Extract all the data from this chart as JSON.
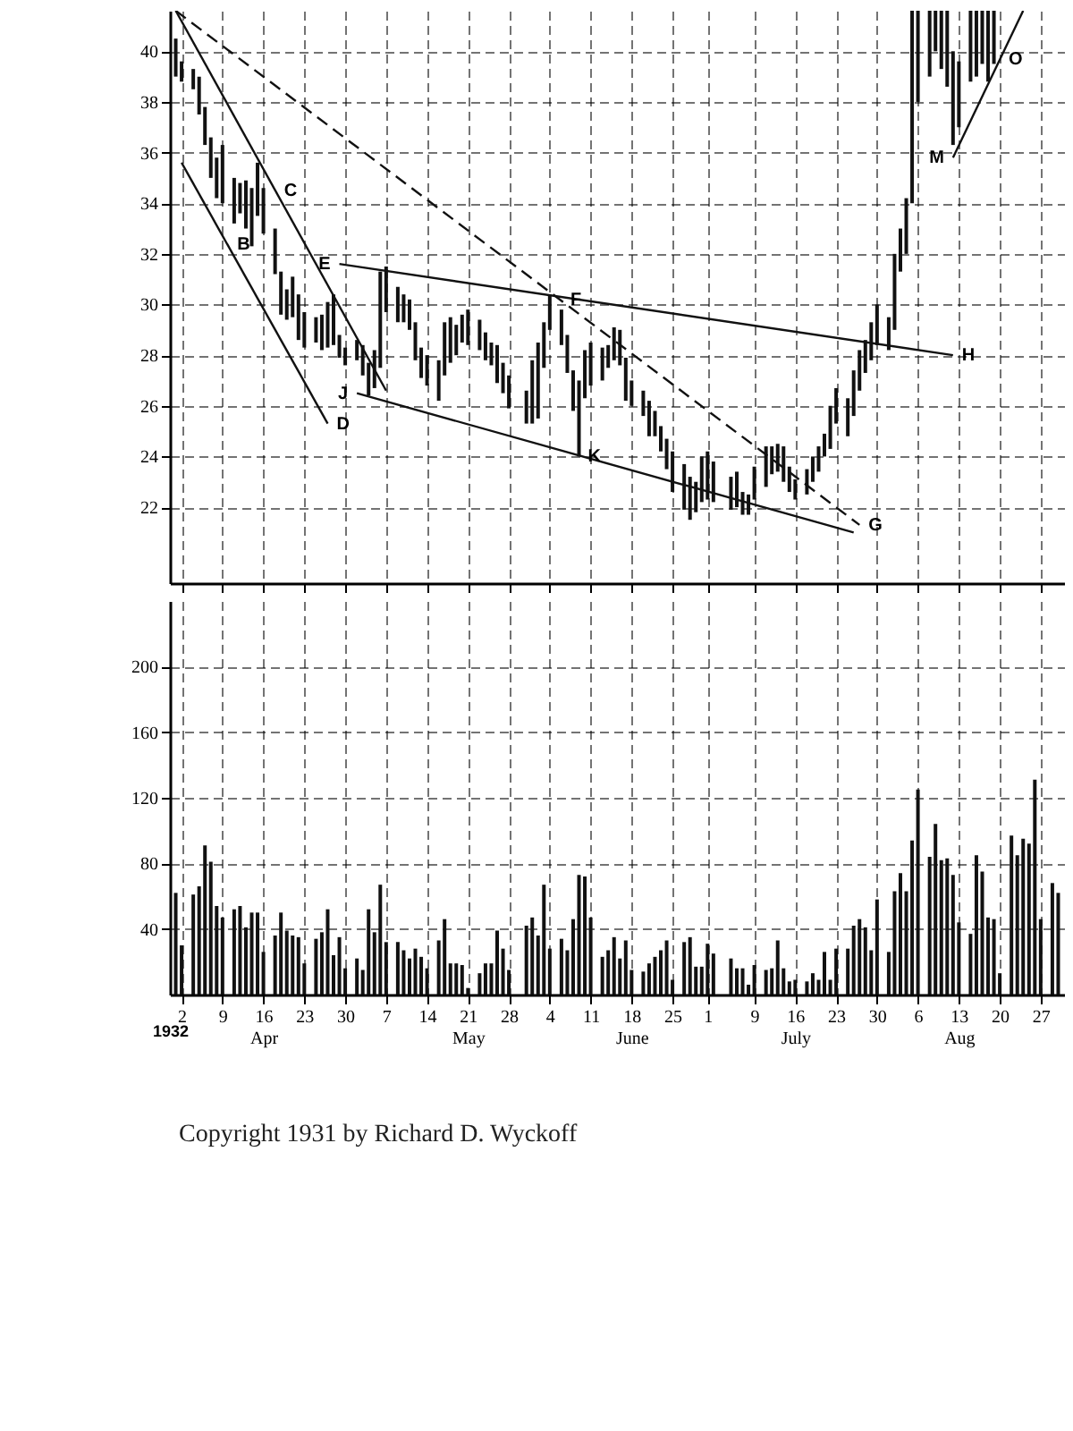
{
  "chart_data": [
    {
      "type": "bar",
      "tick_labels": "y",
      "grid": true,
      "xlim": [
        "1932-03-31",
        "1932-08-31"
      ],
      "xticks": [
        {
          "value": "1932-04-02",
          "label": null
        },
        {
          "value": "1932-04-09",
          "label": null
        },
        {
          "value": "1932-04-16",
          "label": null
        },
        {
          "value": "1932-04-23",
          "label": null
        },
        {
          "value": "1932-04-30",
          "label": null
        },
        {
          "value": "1932-05-07",
          "label": null
        },
        {
          "value": "1932-05-14",
          "label": null
        },
        {
          "value": "1932-05-21",
          "label": null
        },
        {
          "value": "1932-05-28",
          "label": null
        },
        {
          "value": "1932-06-04",
          "label": null
        },
        {
          "value": "1932-06-11",
          "label": null
        },
        {
          "value": "1932-06-18",
          "label": null
        },
        {
          "value": "1932-06-25",
          "label": null
        },
        {
          "value": "1932-07-01",
          "label": null
        },
        {
          "value": "1932-07-09",
          "label": null
        },
        {
          "value": "1932-07-16",
          "label": null
        },
        {
          "value": "1932-07-23",
          "label": null
        },
        {
          "value": "1932-07-30",
          "label": null
        },
        {
          "value": "1932-08-06",
          "label": null
        },
        {
          "value": "1932-08-13",
          "label": null
        },
        {
          "value": "1932-08-20",
          "label": null
        },
        {
          "value": "1932-08-27",
          "label": null
        }
      ],
      "ylim": [
        19,
        41.6
      ],
      "yticks": [
        22,
        24,
        26,
        28,
        30,
        32,
        34,
        36,
        38,
        40
      ],
      "series": [
        {
          "color": "#111111",
          "x": [
            "1932-04-01",
            "1932-04-02",
            "1932-04-04",
            "1932-04-05",
            "1932-04-06",
            "1932-04-07",
            "1932-04-08",
            "1932-04-09",
            "1932-04-11",
            "1932-04-12",
            "1932-04-13",
            "1932-04-14",
            "1932-04-15",
            "1932-04-16",
            "1932-04-18",
            "1932-04-19",
            "1932-04-20",
            "1932-04-21",
            "1932-04-22",
            "1932-04-23",
            "1932-04-25",
            "1932-04-26",
            "1932-04-27",
            "1932-04-28",
            "1932-04-29",
            "1932-04-30",
            "1932-05-02",
            "1932-05-03",
            "1932-05-04",
            "1932-05-05",
            "1932-05-06",
            "1932-05-07",
            "1932-05-09",
            "1932-05-10",
            "1932-05-11",
            "1932-05-12",
            "1932-05-13",
            "1932-05-14",
            "1932-05-16",
            "1932-05-17",
            "1932-05-18",
            "1932-05-19",
            "1932-05-20",
            "1932-05-21",
            "1932-05-23",
            "1932-05-24",
            "1932-05-25",
            "1932-05-26",
            "1932-05-27",
            "1932-05-28",
            "1932-05-31",
            "1932-06-01",
            "1932-06-02",
            "1932-06-03",
            "1932-06-04",
            "1932-06-06",
            "1932-06-07",
            "1932-06-08",
            "1932-06-09",
            "1932-06-10",
            "1932-06-11",
            "1932-06-13",
            "1932-06-14",
            "1932-06-15",
            "1932-06-16",
            "1932-06-17",
            "1932-06-18",
            "1932-06-20",
            "1932-06-21",
            "1932-06-22",
            "1932-06-23",
            "1932-06-24",
            "1932-06-25",
            "1932-06-27",
            "1932-06-28",
            "1932-06-29",
            "1932-06-30",
            "1932-07-01",
            "1932-07-02",
            "1932-07-05",
            "1932-07-06",
            "1932-07-07",
            "1932-07-08",
            "1932-07-09",
            "1932-07-11",
            "1932-07-12",
            "1932-07-13",
            "1932-07-14",
            "1932-07-15",
            "1932-07-16",
            "1932-07-18",
            "1932-07-19",
            "1932-07-20",
            "1932-07-21",
            "1932-07-22",
            "1932-07-23",
            "1932-07-25",
            "1932-07-26",
            "1932-07-27",
            "1932-07-28",
            "1932-07-29",
            "1932-07-30",
            "1932-08-01",
            "1932-08-02",
            "1932-08-03",
            "1932-08-04",
            "1932-08-05",
            "1932-08-06",
            "1932-08-08",
            "1932-08-09",
            "1932-08-10",
            "1932-08-11",
            "1932-08-12",
            "1932-08-13",
            "1932-08-15",
            "1932-08-16",
            "1932-08-17",
            "1932-08-18",
            "1932-08-19"
          ],
          "base": [
            39.0,
            38.8,
            38.5,
            37.5,
            36.3,
            35.0,
            34.2,
            34.0,
            33.2,
            33.6,
            33.0,
            32.3,
            33.5,
            32.8,
            31.2,
            29.6,
            29.4,
            29.5,
            28.6,
            28.3,
            28.5,
            28.2,
            28.3,
            28.4,
            27.9,
            27.6,
            27.8,
            27.2,
            26.4,
            26.7,
            27.5,
            29.7,
            29.3,
            29.3,
            29.0,
            27.8,
            27.1,
            26.8,
            26.2,
            27.2,
            27.7,
            28.0,
            28.5,
            28.4,
            28.2,
            27.8,
            27.6,
            26.9,
            26.5,
            25.9,
            25.3,
            25.3,
            25.5,
            27.5,
            29.0,
            28.4,
            27.3,
            25.8,
            24.0,
            26.3,
            26.8,
            27.0,
            27.5,
            27.8,
            27.6,
            26.2,
            26.0,
            25.6,
            24.8,
            24.8,
            24.2,
            23.5,
            22.6,
            21.9,
            21.5,
            21.8,
            22.2,
            22.3,
            22.2,
            21.9,
            22.0,
            21.7,
            21.7,
            22.3,
            22.8,
            23.3,
            23.4,
            23.0,
            22.6,
            22.3,
            22.5,
            23.0,
            23.4,
            24.0,
            24.3,
            25.3,
            24.8,
            25.6,
            26.6,
            27.3,
            27.8,
            28.4,
            28.2,
            29.0,
            31.3,
            32.0,
            34.0,
            38.0,
            39.0,
            40.0,
            39.3,
            38.6,
            36.3,
            37.0,
            38.8,
            39.0,
            39.5,
            38.8,
            39.5
          ],
          "values": [
            1.5,
            0.8,
            0.8,
            1.5,
            1.5,
            1.6,
            1.6,
            2.3,
            1.8,
            1.2,
            1.9,
            2.3,
            2.1,
            1.8,
            1.8,
            1.7,
            1.2,
            1.6,
            1.8,
            1.4,
            1.0,
            1.4,
            1.8,
            2.0,
            0.9,
            0.7,
            0.8,
            1.2,
            1.3,
            1.5,
            3.8,
            1.8,
            1.4,
            1.1,
            1.2,
            1.5,
            1.2,
            1.2,
            1.6,
            2.1,
            1.8,
            1.2,
            1.1,
            1.4,
            1.2,
            1.1,
            0.9,
            1.5,
            1.2,
            1.3,
            1.3,
            2.5,
            3.0,
            1.8,
            1.4,
            1.4,
            1.5,
            1.6,
            3.0,
            1.9,
            1.7,
            1.3,
            0.9,
            1.3,
            1.4,
            1.7,
            1.0,
            1.0,
            1.4,
            1.0,
            1.0,
            1.2,
            1.6,
            1.8,
            1.7,
            1.2,
            1.8,
            1.9,
            1.6,
            1.3,
            1.4,
            0.9,
            0.8,
            1.3,
            1.6,
            1.1,
            1.1,
            1.4,
            1.0,
            0.8,
            1.0,
            1.0,
            1.0,
            0.9,
            1.7,
            1.4,
            1.5,
            1.8,
            1.6,
            1.3,
            1.5,
            1.6,
            1.3,
            3.0,
            1.7,
            2.2,
            7.6,
            3.6,
            2.6,
            1.6,
            2.3,
            3.0,
            3.7,
            2.6,
            2.8,
            2.6,
            2.1,
            2.8,
            2.1
          ]
        },
        {
          "type": "line",
          "color": "#111111",
          "line_style": "dashed",
          "x": [
            "1932-04-01",
            "1932-07-27"
          ],
          "values": [
            41.6,
            21.3
          ]
        },
        {
          "type": "line",
          "color": "#111111",
          "x": [
            "1932-04-01",
            "1932-05-07"
          ],
          "values": [
            41.6,
            26.6
          ]
        },
        {
          "type": "line",
          "color": "#111111",
          "x": [
            "1932-04-02",
            "1932-04-27"
          ],
          "values": [
            35.6,
            25.3
          ]
        },
        {
          "type": "line",
          "color": "#111111",
          "x": [
            "1932-04-29",
            "1932-08-12"
          ],
          "values": [
            31.6,
            28.0
          ]
        },
        {
          "type": "line",
          "color": "#111111",
          "x": [
            "1932-05-02",
            "1932-07-26"
          ],
          "values": [
            26.5,
            21.0
          ]
        },
        {
          "type": "line",
          "color": "#111111",
          "x": [
            "1932-08-12",
            "1932-08-24"
          ],
          "values": [
            35.8,
            41.6
          ]
        }
      ],
      "annotations": [
        {
          "text": "B",
          "x": "1932-04-10",
          "y": 32.4
        },
        {
          "text": "C",
          "x": "1932-04-18",
          "y": 34.5
        },
        {
          "text": "D",
          "x": "1932-04-27",
          "y": 25.3
        },
        {
          "text": "E",
          "x": "1932-04-29",
          "y": 31.6
        },
        {
          "text": "J",
          "x": "1932-05-02",
          "y": 26.5
        },
        {
          "text": "F",
          "x": "1932-06-06",
          "y": 30.2
        },
        {
          "text": "K",
          "x": "1932-06-09",
          "y": 24.0
        },
        {
          "text": "G",
          "x": "1932-07-27",
          "y": 21.3
        },
        {
          "text": "H",
          "x": "1932-08-12",
          "y": 28.0
        },
        {
          "text": "M",
          "x": "1932-08-12",
          "y": 35.8
        },
        {
          "text": "O",
          "x": "1932-08-20",
          "y": 39.7
        }
      ]
    },
    {
      "type": "bar",
      "grid": true,
      "xlabel": "1932",
      "color": "#111111",
      "x": [
        "1932-04-01",
        "1932-04-02",
        "1932-04-04",
        "1932-04-05",
        "1932-04-06",
        "1932-04-07",
        "1932-04-08",
        "1932-04-09",
        "1932-04-11",
        "1932-04-12",
        "1932-04-13",
        "1932-04-14",
        "1932-04-15",
        "1932-04-16",
        "1932-04-18",
        "1932-04-19",
        "1932-04-20",
        "1932-04-21",
        "1932-04-22",
        "1932-04-23",
        "1932-04-25",
        "1932-04-26",
        "1932-04-27",
        "1932-04-28",
        "1932-04-29",
        "1932-04-30",
        "1932-05-02",
        "1932-05-03",
        "1932-05-04",
        "1932-05-05",
        "1932-05-06",
        "1932-05-07",
        "1932-05-09",
        "1932-05-10",
        "1932-05-11",
        "1932-05-12",
        "1932-05-13",
        "1932-05-14",
        "1932-05-16",
        "1932-05-17",
        "1932-05-18",
        "1932-05-19",
        "1932-05-20",
        "1932-05-21",
        "1932-05-23",
        "1932-05-24",
        "1932-05-25",
        "1932-05-26",
        "1932-05-27",
        "1932-05-28",
        "1932-05-31",
        "1932-06-01",
        "1932-06-02",
        "1932-06-03",
        "1932-06-04",
        "1932-06-06",
        "1932-06-07",
        "1932-06-08",
        "1932-06-09",
        "1932-06-10",
        "1932-06-11",
        "1932-06-13",
        "1932-06-14",
        "1932-06-15",
        "1932-06-16",
        "1932-06-17",
        "1932-06-18",
        "1932-06-20",
        "1932-06-21",
        "1932-06-22",
        "1932-06-23",
        "1932-06-24",
        "1932-06-25",
        "1932-06-27",
        "1932-06-28",
        "1932-06-29",
        "1932-06-30",
        "1932-07-01",
        "1932-07-02",
        "1932-07-05",
        "1932-07-06",
        "1932-07-07",
        "1932-07-08",
        "1932-07-09",
        "1932-07-11",
        "1932-07-12",
        "1932-07-13",
        "1932-07-14",
        "1932-07-15",
        "1932-07-16",
        "1932-07-18",
        "1932-07-19",
        "1932-07-20",
        "1932-07-21",
        "1932-07-22",
        "1932-07-23",
        "1932-07-25",
        "1932-07-26",
        "1932-07-27",
        "1932-07-28",
        "1932-07-29",
        "1932-07-30",
        "1932-08-01",
        "1932-08-02",
        "1932-08-03",
        "1932-08-04",
        "1932-08-05",
        "1932-08-06",
        "1932-08-08",
        "1932-08-09",
        "1932-08-10",
        "1932-08-11",
        "1932-08-12",
        "1932-08-13",
        "1932-08-15",
        "1932-08-16",
        "1932-08-17",
        "1932-08-18",
        "1932-08-19",
        "1932-08-20",
        "1932-08-22",
        "1932-08-23",
        "1932-08-24",
        "1932-08-25",
        "1932-08-26",
        "1932-08-27",
        "1932-08-29",
        "1932-08-30"
      ],
      "xlim": [
        "1932-03-31",
        "1932-08-31"
      ],
      "xticks": [
        {
          "value": "1932-04-02",
          "label": "2"
        },
        {
          "value": "1932-04-09",
          "label": "9"
        },
        {
          "value": "1932-04-16",
          "label": "16\nApr"
        },
        {
          "value": "1932-04-23",
          "label": "23"
        },
        {
          "value": "1932-04-30",
          "label": "30"
        },
        {
          "value": "1932-05-07",
          "label": "7"
        },
        {
          "value": "1932-05-14",
          "label": "14"
        },
        {
          "value": "1932-05-21",
          "label": "21\nMay"
        },
        {
          "value": "1932-05-28",
          "label": "28"
        },
        {
          "value": "1932-06-04",
          "label": "4"
        },
        {
          "value": "1932-06-11",
          "label": "11"
        },
        {
          "value": "1932-06-18",
          "label": "18\nJune"
        },
        {
          "value": "1932-06-25",
          "label": "25"
        },
        {
          "value": "1932-07-01",
          "label": "1"
        },
        {
          "value": "1932-07-09",
          "label": "9"
        },
        {
          "value": "1932-07-16",
          "label": "16\nJuly"
        },
        {
          "value": "1932-07-23",
          "label": "23"
        },
        {
          "value": "1932-07-30",
          "label": "30"
        },
        {
          "value": "1932-08-06",
          "label": "6"
        },
        {
          "value": "1932-08-13",
          "label": "13\nAug"
        },
        {
          "value": "1932-08-20",
          "label": "20"
        },
        {
          "value": "1932-08-27",
          "label": "27"
        }
      ],
      "ylim": [
        0,
        240
      ],
      "yticks": [
        40,
        80,
        120,
        160,
        200
      ],
      "values": [
        62,
        30,
        61,
        66,
        91,
        81,
        54,
        47,
        52,
        54,
        41,
        50,
        50,
        26,
        36,
        50,
        39,
        36,
        35,
        19,
        34,
        38,
        52,
        24,
        35,
        16,
        22,
        15,
        52,
        38,
        67,
        32,
        32,
        27,
        22,
        28,
        23,
        16,
        33,
        46,
        19,
        19,
        18,
        4,
        13,
        19,
        19,
        39,
        28,
        15,
        42,
        47,
        36,
        67,
        28,
        34,
        27,
        46,
        73,
        72,
        47,
        23,
        27,
        35,
        22,
        33,
        15,
        14,
        19,
        23,
        27,
        33,
        9,
        32,
        35,
        17,
        17,
        31,
        25,
        22,
        16,
        16,
        6,
        18,
        15,
        16,
        33,
        16,
        8,
        9,
        8,
        13,
        9,
        26,
        9,
        28,
        28,
        42,
        46,
        41,
        27,
        58,
        26,
        63,
        74,
        63,
        94,
        125,
        84,
        104,
        82,
        83,
        73,
        44,
        37,
        85,
        75,
        47,
        46,
        13,
        97,
        85,
        95,
        92,
        131,
        46,
        68,
        62
      ],
      "annotations": [
        "Copyright 1931 by Richard D. Wyckoff"
      ]
    }
  ]
}
